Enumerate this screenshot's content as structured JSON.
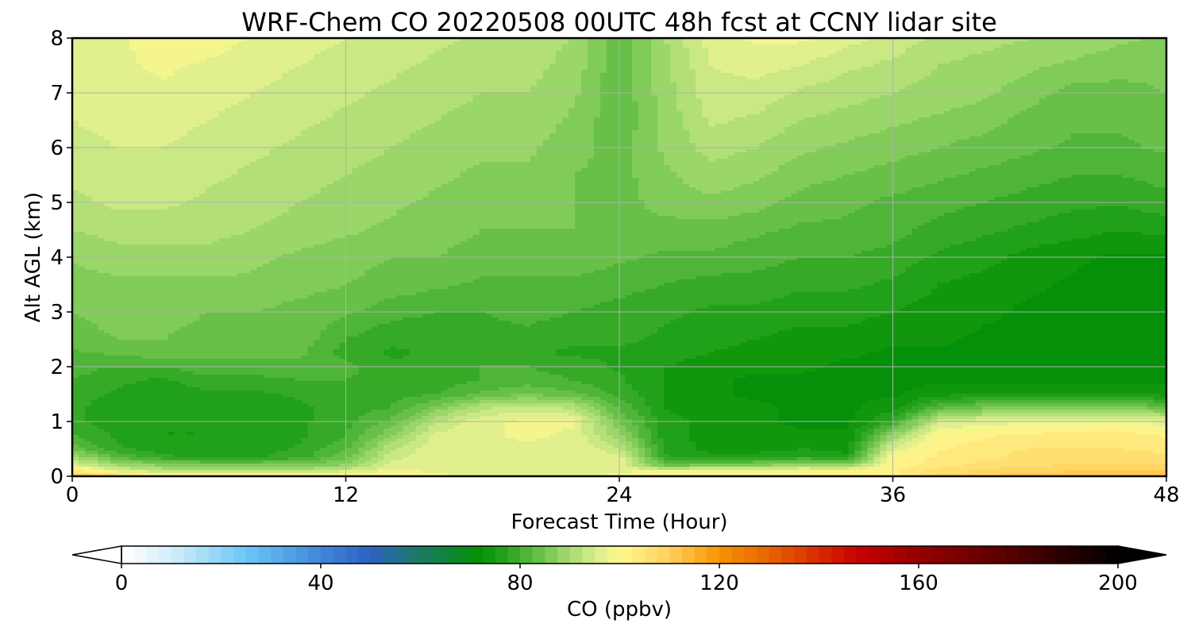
{
  "chart_data": {
    "type": "heatmap",
    "subtype": "filled-contour time-height cross-section",
    "title": "WRF-Chem CO  20220508 00UTC 48h fcst at CCNY lidar site",
    "xlabel": "Forecast Time (Hour)",
    "ylabel": "Alt AGL (km)",
    "xlim": [
      0,
      48
    ],
    "ylim": [
      0,
      8
    ],
    "xticks": [
      0,
      12,
      24,
      36,
      48
    ],
    "xtick_labels": [
      "0",
      "12",
      "24",
      "36",
      "48"
    ],
    "yticks": [
      0,
      1,
      2,
      3,
      4,
      5,
      6,
      7,
      8
    ],
    "ytick_labels": [
      "0",
      "1",
      "2",
      "3",
      "4",
      "5",
      "6",
      "7",
      "8"
    ],
    "grid": true,
    "colorbar": {
      "label": "CO  (ppbv)",
      "orientation": "horizontal",
      "position": "bottom",
      "min": 0,
      "max": 200,
      "step": 2.5,
      "extend": "both",
      "ticks": [
        0,
        40,
        80,
        120,
        160,
        200
      ],
      "tick_labels": [
        "0",
        "40",
        "80",
        "120",
        "160",
        "200"
      ],
      "stops": [
        {
          "v": 0,
          "color": "#ffffff"
        },
        {
          "v": 10,
          "color": "#d4eefa"
        },
        {
          "v": 25,
          "color": "#69c7f5"
        },
        {
          "v": 40,
          "color": "#3f86d9"
        },
        {
          "v": 50,
          "color": "#2e62c2"
        },
        {
          "v": 60,
          "color": "#1a7a64"
        },
        {
          "v": 72,
          "color": "#039102"
        },
        {
          "v": 78,
          "color": "#2ea622"
        },
        {
          "v": 84,
          "color": "#6bc14a"
        },
        {
          "v": 90,
          "color": "#a6db71"
        },
        {
          "v": 96,
          "color": "#dfef8d"
        },
        {
          "v": 100,
          "color": "#fff78f"
        },
        {
          "v": 110,
          "color": "#ffd15e"
        },
        {
          "v": 120,
          "color": "#f79300"
        },
        {
          "v": 130,
          "color": "#e86400"
        },
        {
          "v": 140,
          "color": "#d82a00"
        },
        {
          "v": 148,
          "color": "#c90000"
        },
        {
          "v": 160,
          "color": "#960000"
        },
        {
          "v": 180,
          "color": "#4f0000"
        },
        {
          "v": 200,
          "color": "#000000"
        }
      ]
    },
    "x": [
      0,
      2,
      4,
      6,
      8,
      10,
      12,
      14,
      16,
      18,
      20,
      22,
      24,
      26,
      28,
      30,
      32,
      34,
      36,
      38,
      40,
      42,
      44,
      46,
      48
    ],
    "y": [
      0,
      0.1,
      0.2,
      0.35,
      0.5,
      0.75,
      1,
      1.25,
      1.5,
      1.75,
      2,
      2.25,
      2.5,
      3,
      3.5,
      4,
      4.5,
      5,
      5.5,
      6,
      6.5,
      7,
      7.5,
      8
    ],
    "z": [
      [
        112,
        108,
        104,
        104,
        104,
        104,
        103,
        100,
        98,
        97,
        97,
        97,
        98,
        100,
        100,
        100,
        100,
        101,
        102,
        108,
        110,
        112,
        112,
        112,
        112
      ],
      [
        104,
        96,
        92,
        91,
        91,
        92,
        94,
        98,
        97,
        97,
        97,
        97,
        97,
        98,
        99,
        99,
        100,
        100,
        102,
        106,
        108,
        109,
        110,
        110,
        110
      ],
      [
        96,
        90,
        87,
        86,
        86,
        86,
        88,
        96,
        97,
        97,
        97,
        97,
        97,
        84,
        86,
        87,
        89,
        88,
        101,
        104,
        106,
        107,
        108,
        108,
        108
      ],
      [
        90,
        82,
        78,
        77,
        77,
        79,
        84,
        94,
        97,
        97,
        97,
        97,
        96,
        78,
        76,
        76,
        78,
        76,
        100,
        103,
        104,
        106,
        106,
        106,
        106
      ],
      [
        84,
        78,
        76,
        76,
        76,
        78,
        82,
        92,
        97,
        97,
        97,
        97,
        93,
        77,
        74,
        74,
        75,
        74,
        96,
        102,
        104,
        105,
        105,
        105,
        104
      ],
      [
        80,
        77,
        75,
        75,
        76,
        77,
        80,
        87,
        96,
        97,
        98,
        97,
        88,
        76,
        74,
        73,
        73,
        73,
        88,
        100,
        102,
        103,
        104,
        104,
        102
      ],
      [
        78,
        76,
        75,
        75,
        76,
        77,
        79,
        83,
        92,
        97,
        98,
        98,
        85,
        76,
        74,
        73,
        72,
        72,
        78,
        94,
        96,
        97,
        97,
        98,
        96
      ],
      [
        78,
        76,
        75,
        76,
        76,
        77,
        79,
        80,
        86,
        92,
        94,
        92,
        82,
        75,
        73,
        73,
        72,
        72,
        74,
        82,
        85,
        86,
        86,
        86,
        84
      ],
      [
        79,
        77,
        76,
        77,
        77,
        78,
        79,
        79,
        80,
        83,
        85,
        83,
        79,
        75,
        73,
        72,
        72,
        72,
        72,
        74,
        75,
        75,
        75,
        75,
        74
      ],
      [
        80,
        78,
        77,
        79,
        79,
        80,
        80,
        79,
        79,
        80,
        81,
        80,
        78,
        75,
        73,
        72,
        72,
        72,
        72,
        72,
        72,
        72,
        72,
        72,
        72
      ],
      [
        81,
        80,
        80,
        82,
        82,
        82,
        81,
        78,
        79,
        80,
        80,
        79,
        77,
        75,
        74,
        73,
        73,
        72,
        72,
        72,
        72,
        72,
        72,
        72,
        72
      ],
      [
        82,
        83,
        84,
        83,
        83,
        83,
        79,
        77,
        78,
        79,
        78,
        77,
        77,
        76,
        75,
        74,
        73,
        73,
        72,
        72,
        72,
        72,
        72,
        72,
        71
      ],
      [
        84,
        85,
        85,
        84,
        84,
        84,
        80,
        78,
        78,
        79,
        79,
        78,
        78,
        77,
        76,
        75,
        74,
        74,
        73,
        73,
        72,
        72,
        72,
        71,
        70
      ],
      [
        85,
        86,
        86,
        85,
        85,
        84,
        83,
        81,
        80,
        80,
        81,
        80,
        79,
        78,
        77,
        77,
        76,
        76,
        75,
        74,
        73,
        72,
        72,
        71,
        70
      ],
      [
        86,
        87,
        87,
        87,
        87,
        86,
        85,
        84,
        83,
        82,
        82,
        82,
        81,
        80,
        79,
        79,
        78,
        78,
        77,
        75,
        74,
        73,
        72,
        71,
        71
      ],
      [
        88,
        89,
        89,
        89,
        88,
        87,
        86,
        85,
        85,
        84,
        84,
        84,
        83,
        82,
        82,
        81,
        80,
        80,
        79,
        77,
        76,
        74,
        73,
        72,
        72
      ],
      [
        90,
        91,
        91,
        91,
        90,
        89,
        88,
        87,
        86,
        85,
        85,
        85,
        84,
        84,
        84,
        83,
        82,
        82,
        81,
        79,
        78,
        77,
        76,
        75,
        76
      ],
      [
        92,
        93,
        93,
        92,
        91,
        90,
        89,
        88,
        87,
        86,
        86,
        85,
        84,
        86,
        87,
        86,
        84,
        83,
        82,
        81,
        80,
        79,
        78,
        78,
        79
      ],
      [
        93,
        94,
        94,
        93,
        92,
        91,
        90,
        89,
        88,
        87,
        87,
        85,
        84,
        87,
        89,
        88,
        86,
        85,
        84,
        83,
        82,
        81,
        80,
        80,
        81
      ],
      [
        94,
        95,
        95,
        94,
        93,
        92,
        91,
        90,
        89,
        88,
        88,
        86,
        84,
        88,
        91,
        90,
        88,
        87,
        86,
        85,
        84,
        83,
        82,
        82,
        83
      ],
      [
        95,
        96,
        96,
        95,
        94,
        93,
        92,
        91,
        90,
        89,
        89,
        87,
        83,
        88,
        93,
        92,
        90,
        89,
        88,
        87,
        86,
        84,
        83,
        83,
        84
      ],
      [
        96,
        97,
        97,
        96,
        95,
        94,
        93,
        92,
        91,
        90,
        90,
        88,
        83,
        89,
        94,
        94,
        92,
        91,
        90,
        89,
        88,
        86,
        84,
        84,
        85
      ],
      [
        96,
        97,
        98,
        97,
        96,
        95,
        94,
        93,
        92,
        91,
        91,
        89,
        83,
        89,
        95,
        96,
        95,
        93,
        92,
        90,
        89,
        88,
        87,
        86,
        86
      ],
      [
        96,
        97,
        99,
        99,
        97,
        96,
        95,
        94,
        93,
        92,
        91,
        90,
        83,
        90,
        96,
        98,
        98,
        96,
        94,
        92,
        91,
        90,
        89,
        88,
        87
      ]
    ]
  }
}
